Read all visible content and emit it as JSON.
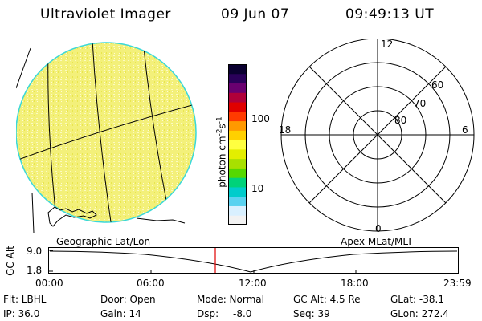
{
  "header": {
    "title": "Ultraviolet Imager",
    "date": "09 Jun 07",
    "time": "09:49:13 UT"
  },
  "colorbar": {
    "unit_label": "photon cm",
    "unit_sup1": "-2",
    "unit_mid": "s",
    "unit_sup2": "-1",
    "tick_100": "100",
    "tick_10": "10",
    "colors": [
      "#f2f2f2",
      "#d9f0ff",
      "#5ad2f0",
      "#00cccc",
      "#00d27a",
      "#55d800",
      "#a8e000",
      "#e3ee00",
      "#ffff40",
      "#ffd000",
      "#ff9900",
      "#ff3b00",
      "#e00000",
      "#b0003a",
      "#6a0070",
      "#2a005a",
      "#0a0030"
    ]
  },
  "polar": {
    "mlt_labels": {
      "top": "12",
      "left": "18",
      "right": "6",
      "bottom": "0"
    },
    "lat_labels": [
      "60",
      "70",
      "80"
    ]
  },
  "alt_panel": {
    "left_label": "Geographic Lat/Lon",
    "right_label": "Apex MLat/MLT",
    "ylabel": "GC Alt",
    "ytick_top": "9.0",
    "ytick_bottom": "1.8",
    "time_ticks": [
      "00:00",
      "06:00",
      "12:00",
      "18:00",
      "23:59"
    ]
  },
  "footer": {
    "flt": "Flt: LBHL",
    "ip": "IP: 36.0",
    "door": "Door: Open",
    "gain": "Gain: 14",
    "mode": "Mode: Normal",
    "dsp": "Dsp:",
    "dsp_val": "-8.0",
    "gcalt": "GC Alt: 4.5 Re",
    "seq": "Seq: 39",
    "glat": "GLat: -38.1",
    "glon": "GLon: 272.4"
  },
  "colors": {
    "image_fill": "#f4f27a",
    "image_edge": "#3ad8d8",
    "marker": "#e00000"
  }
}
